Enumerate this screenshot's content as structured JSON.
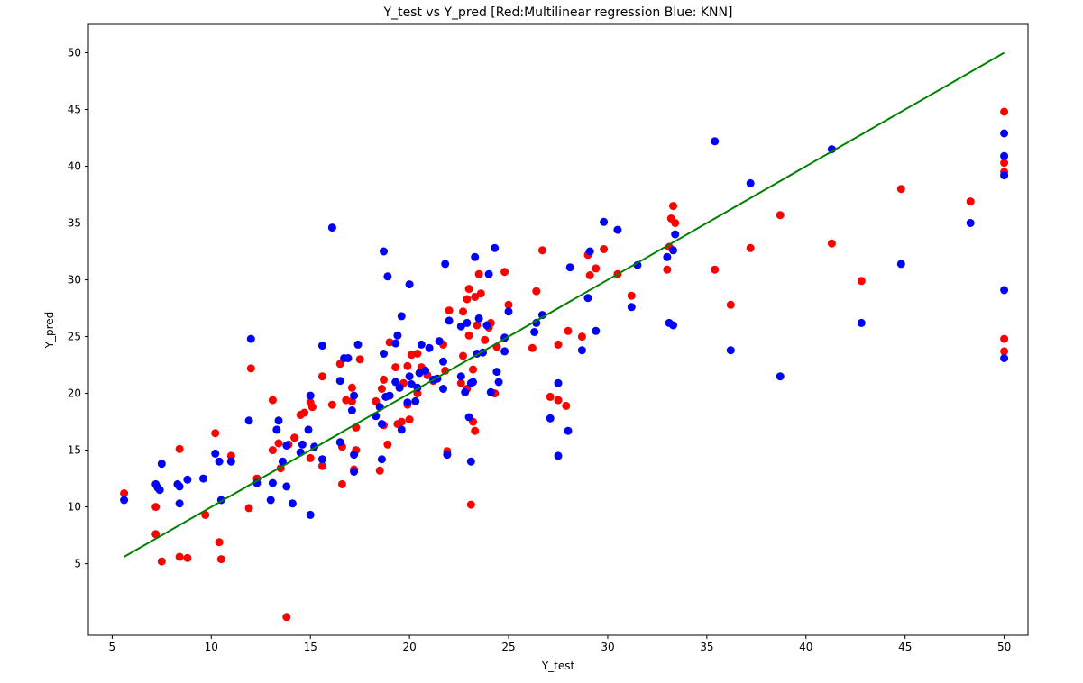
{
  "chart_data": {
    "type": "scatter",
    "title": "Y_test vs Y_pred [Red:Multilinear regression   Blue: KNN]",
    "xlabel": "Y_test",
    "ylabel": "Y_pred",
    "xlim": [
      3.8,
      51.2
    ],
    "ylim": [
      -1.3,
      52.5
    ],
    "x_ticks": [
      5,
      10,
      15,
      20,
      25,
      30,
      35,
      40,
      45,
      50
    ],
    "y_ticks": [
      5,
      10,
      15,
      20,
      25,
      30,
      35,
      40,
      45,
      50
    ],
    "grid": false,
    "series": [
      {
        "color": "#ff0000",
        "points": [
          [
            5.6,
            11.2
          ],
          [
            7.2,
            7.6
          ],
          [
            7.2,
            10
          ],
          [
            7.5,
            5.2
          ],
          [
            8.4,
            5.6
          ],
          [
            8.4,
            15.1
          ],
          [
            8.8,
            5.5
          ],
          [
            9.7,
            9.3
          ],
          [
            10.2,
            16.5
          ],
          [
            10.4,
            6.9
          ],
          [
            10.5,
            5.4
          ],
          [
            11,
            14.5
          ],
          [
            11.9,
            9.9
          ],
          [
            12,
            22.2
          ],
          [
            12.3,
            12.5
          ],
          [
            13.1,
            19.4
          ],
          [
            13.1,
            15
          ],
          [
            13.4,
            15.6
          ],
          [
            13.5,
            13.4
          ],
          [
            13.8,
            0.3
          ],
          [
            13.9,
            15.5
          ],
          [
            14.2,
            16.1
          ],
          [
            14.5,
            18.1
          ],
          [
            14.7,
            18.3
          ],
          [
            15,
            19.2
          ],
          [
            15.1,
            18.8
          ],
          [
            15,
            14.3
          ],
          [
            15.6,
            13.6
          ],
          [
            15.6,
            21.5
          ],
          [
            16.1,
            19
          ],
          [
            16.5,
            22.6
          ],
          [
            16.6,
            12
          ],
          [
            16.6,
            15.3
          ],
          [
            16.8,
            19.4
          ],
          [
            17.1,
            20.5
          ],
          [
            17.1,
            19.3
          ],
          [
            17.2,
            13.3
          ],
          [
            17.3,
            17
          ],
          [
            17.3,
            15
          ],
          [
            17.5,
            23
          ],
          [
            18.3,
            19.3
          ],
          [
            18.5,
            13.2
          ],
          [
            18.6,
            20.4
          ],
          [
            18.7,
            21.2
          ],
          [
            18.7,
            17.2
          ],
          [
            18.9,
            15.5
          ],
          [
            19,
            24.5
          ],
          [
            19.3,
            22.3
          ],
          [
            19.4,
            17.3
          ],
          [
            19.5,
            20.5
          ],
          [
            19.6,
            17.5
          ],
          [
            19.7,
            20.9
          ],
          [
            19.9,
            22.4
          ],
          [
            19.9,
            19
          ],
          [
            20,
            17.7
          ],
          [
            20.1,
            23.4
          ],
          [
            20.4,
            23.5
          ],
          [
            20.4,
            20
          ],
          [
            20.6,
            22.3
          ],
          [
            20.9,
            21.6
          ],
          [
            21.2,
            21.1
          ],
          [
            21.4,
            21.3
          ],
          [
            21.7,
            24.3
          ],
          [
            21.8,
            22
          ],
          [
            21.9,
            14.9
          ],
          [
            22,
            27.3
          ],
          [
            22.6,
            20.9
          ],
          [
            22.7,
            23.3
          ],
          [
            22.7,
            27.2
          ],
          [
            22.9,
            28.3
          ],
          [
            22.9,
            20.4
          ],
          [
            23,
            25.1
          ],
          [
            23,
            29.2
          ],
          [
            23.1,
            10.2
          ],
          [
            23.2,
            22.1
          ],
          [
            23.2,
            17.5
          ],
          [
            23.3,
            16.7
          ],
          [
            23.3,
            28.5
          ],
          [
            23.4,
            26
          ],
          [
            23.5,
            30.5
          ],
          [
            23.6,
            28.8
          ],
          [
            23.8,
            24.7
          ],
          [
            24,
            25.8
          ],
          [
            24.1,
            26.2
          ],
          [
            24.3,
            20
          ],
          [
            24.4,
            24.1
          ],
          [
            24.8,
            30.7
          ],
          [
            25,
            27.8
          ],
          [
            26.2,
            24
          ],
          [
            26.4,
            29
          ],
          [
            26.7,
            32.6
          ],
          [
            27.1,
            19.7
          ],
          [
            27.5,
            19.4
          ],
          [
            27.5,
            24.3
          ],
          [
            27.9,
            18.9
          ],
          [
            28,
            25.5
          ],
          [
            28.7,
            25
          ],
          [
            29,
            32.2
          ],
          [
            29.1,
            30.4
          ],
          [
            29.4,
            31
          ],
          [
            29.8,
            32.7
          ],
          [
            30.5,
            30.5
          ],
          [
            31.2,
            28.6
          ],
          [
            33,
            30.9
          ],
          [
            33.1,
            32.9
          ],
          [
            33.2,
            35.4
          ],
          [
            33.3,
            36.5
          ],
          [
            33.4,
            35
          ],
          [
            35.4,
            30.9
          ],
          [
            36.2,
            27.8
          ],
          [
            37.2,
            32.8
          ],
          [
            38.7,
            35.7
          ],
          [
            41.3,
            33.2
          ],
          [
            42.8,
            29.9
          ],
          [
            44.8,
            38
          ],
          [
            48.3,
            36.9
          ],
          [
            50,
            44.8
          ],
          [
            50,
            40.3
          ],
          [
            50,
            39.5
          ],
          [
            50,
            24.8
          ],
          [
            50,
            23.7
          ]
        ]
      },
      {
        "color": "#0000ff",
        "points": [
          [
            5.6,
            10.6
          ],
          [
            7.2,
            12
          ],
          [
            7.3,
            11.7
          ],
          [
            7.4,
            11.5
          ],
          [
            7.5,
            13.8
          ],
          [
            8.3,
            12
          ],
          [
            8.4,
            11.8
          ],
          [
            8.4,
            10.3
          ],
          [
            8.8,
            12.4
          ],
          [
            9.6,
            12.5
          ],
          [
            10.2,
            14.7
          ],
          [
            10.4,
            14
          ],
          [
            10.5,
            10.6
          ],
          [
            11,
            14
          ],
          [
            11.9,
            17.6
          ],
          [
            12,
            24.8
          ],
          [
            12.3,
            12.1
          ],
          [
            13,
            10.6
          ],
          [
            13.1,
            12.1
          ],
          [
            13.3,
            16.8
          ],
          [
            13.4,
            17.6
          ],
          [
            13.6,
            14
          ],
          [
            13.8,
            15.4
          ],
          [
            13.8,
            11.8
          ],
          [
            14.1,
            10.3
          ],
          [
            14.5,
            14.8
          ],
          [
            14.6,
            15.5
          ],
          [
            14.9,
            16.8
          ],
          [
            15,
            19.8
          ],
          [
            15,
            9.3
          ],
          [
            15.2,
            15.3
          ],
          [
            15.6,
            14.2
          ],
          [
            15.6,
            24.2
          ],
          [
            16.1,
            34.6
          ],
          [
            16.5,
            15.7
          ],
          [
            16.5,
            21.1
          ],
          [
            16.7,
            23.1
          ],
          [
            16.9,
            23.1
          ],
          [
            17.2,
            19.8
          ],
          [
            17.2,
            14.6
          ],
          [
            17.2,
            13.1
          ],
          [
            17.1,
            18.5
          ],
          [
            17.4,
            24.3
          ],
          [
            18.3,
            18
          ],
          [
            18.5,
            18.8
          ],
          [
            18.6,
            14.2
          ],
          [
            18.6,
            17.3
          ],
          [
            18.7,
            32.5
          ],
          [
            18.7,
            23.5
          ],
          [
            18.9,
            30.3
          ],
          [
            18.8,
            19.7
          ],
          [
            19,
            19.8
          ],
          [
            19.3,
            21
          ],
          [
            19.3,
            24.4
          ],
          [
            19.4,
            25.1
          ],
          [
            19.5,
            20.5
          ],
          [
            19.6,
            26.8
          ],
          [
            19.6,
            16.8
          ],
          [
            19.9,
            19.2
          ],
          [
            20,
            29.6
          ],
          [
            20.1,
            20.8
          ],
          [
            20,
            21.5
          ],
          [
            20.3,
            19.3
          ],
          [
            20.4,
            20.5
          ],
          [
            20.5,
            21.8
          ],
          [
            20.6,
            24.3
          ],
          [
            20.8,
            22
          ],
          [
            21,
            24
          ],
          [
            21.2,
            21.2
          ],
          [
            21.4,
            21.3
          ],
          [
            21.5,
            24.6
          ],
          [
            21.7,
            20.4
          ],
          [
            21.7,
            22.8
          ],
          [
            21.8,
            31.4
          ],
          [
            21.9,
            14.6
          ],
          [
            22,
            26.4
          ],
          [
            22.6,
            25.9
          ],
          [
            22.6,
            21.5
          ],
          [
            22.8,
            20.1
          ],
          [
            22.9,
            26.2
          ],
          [
            23,
            17.9
          ],
          [
            23.1,
            14
          ],
          [
            23.2,
            21
          ],
          [
            23.1,
            20.9
          ],
          [
            23.3,
            32
          ],
          [
            23.4,
            23.5
          ],
          [
            23.5,
            26.6
          ],
          [
            23.7,
            23.6
          ],
          [
            23.9,
            26
          ],
          [
            24,
            30.5
          ],
          [
            24.1,
            20.1
          ],
          [
            24.3,
            32.8
          ],
          [
            24.4,
            21.9
          ],
          [
            24.5,
            21
          ],
          [
            24.8,
            23.7
          ],
          [
            24.8,
            24.9
          ],
          [
            25,
            27.2
          ],
          [
            26.3,
            25.4
          ],
          [
            26.4,
            26.2
          ],
          [
            26.7,
            26.9
          ],
          [
            27.1,
            17.8
          ],
          [
            27.5,
            20.9
          ],
          [
            27.5,
            14.5
          ],
          [
            28,
            16.7
          ],
          [
            28.1,
            31.1
          ],
          [
            28.7,
            23.8
          ],
          [
            29,
            28.4
          ],
          [
            29.1,
            32.5
          ],
          [
            29.4,
            25.5
          ],
          [
            29.8,
            35.1
          ],
          [
            30.5,
            34.4
          ],
          [
            31.2,
            27.6
          ],
          [
            31.5,
            31.3
          ],
          [
            33,
            32
          ],
          [
            33.1,
            26.2
          ],
          [
            33.3,
            32.6
          ],
          [
            33.4,
            34
          ],
          [
            33.3,
            26
          ],
          [
            35.4,
            42.2
          ],
          [
            36.2,
            23.8
          ],
          [
            37.2,
            38.5
          ],
          [
            38.7,
            21.5
          ],
          [
            41.3,
            41.5
          ],
          [
            42.8,
            26.2
          ],
          [
            44.8,
            31.4
          ],
          [
            48.3,
            35
          ],
          [
            50,
            42.9
          ],
          [
            50,
            40.9
          ],
          [
            50,
            39.2
          ],
          [
            50,
            29.1
          ],
          [
            50,
            23.1
          ]
        ]
      }
    ],
    "reference_line": {
      "color": "#008000",
      "points": [
        [
          5.6,
          5.6
        ],
        [
          50,
          50
        ]
      ]
    }
  }
}
